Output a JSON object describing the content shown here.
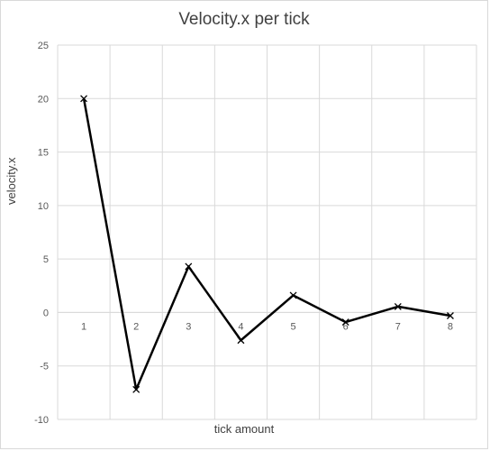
{
  "chart_data": {
    "type": "line",
    "title": "Velocity.x per tick",
    "xlabel": "tick amount",
    "ylabel": "velocity.x",
    "categories": [
      "1",
      "2",
      "3",
      "4",
      "5",
      "6",
      "7",
      "8"
    ],
    "series": [
      {
        "values": [
          20,
          -7.2,
          4.3,
          -2.6,
          1.6,
          -0.9,
          0.55,
          -0.3
        ],
        "color": "#000000",
        "marker": "x"
      }
    ],
    "ylim": [
      -10,
      25
    ],
    "yticks": [
      "25",
      "20",
      "15",
      "10",
      "5",
      "0",
      "-5",
      "-10"
    ],
    "grid": true,
    "legend": "none"
  }
}
